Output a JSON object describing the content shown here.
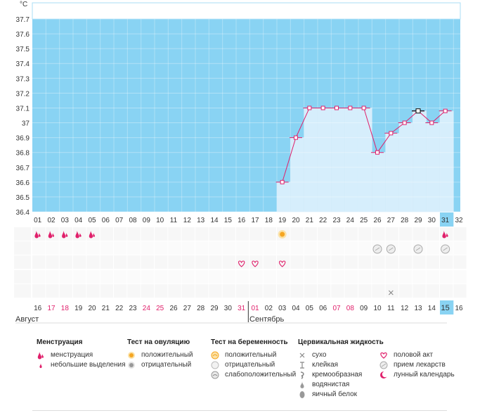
{
  "chart_data": {
    "type": "line",
    "ylabel": "°C",
    "ylim": [
      36.4,
      37.8
    ],
    "y_ticks": [
      "37.7",
      "37.6",
      "37.5",
      "37.4",
      "37.3",
      "37.2",
      "37.1",
      "37",
      "36.9",
      "36.8",
      "36.7",
      "36.6",
      "36.5",
      "36.4"
    ],
    "x_top": [
      "01",
      "02",
      "03",
      "04",
      "05",
      "06",
      "07",
      "08",
      "09",
      "10",
      "11",
      "12",
      "13",
      "14",
      "15",
      "16",
      "17",
      "18",
      "19",
      "20",
      "21",
      "22",
      "23",
      "24",
      "25",
      "26",
      "27",
      "28",
      "29",
      "30",
      "31",
      "32"
    ],
    "x_bottom": [
      "16",
      "17",
      "18",
      "19",
      "20",
      "21",
      "22",
      "23",
      "24",
      "25",
      "26",
      "27",
      "28",
      "29",
      "30",
      "31",
      "01",
      "02",
      "03",
      "04",
      "05",
      "06",
      "07",
      "08",
      "09",
      "10",
      "11",
      "12",
      "13",
      "14",
      "15",
      "16"
    ],
    "bottom_red_indices": [
      1,
      2,
      8,
      9,
      15,
      16,
      22,
      23,
      30
    ],
    "highlight_index": 30,
    "month_left": "Август",
    "month_right": "Сентябрь",
    "series": [
      {
        "x": [
          19,
          20,
          21,
          22,
          23,
          24,
          25,
          26,
          27,
          28,
          29,
          30,
          31
        ],
        "values": [
          36.6,
          36.9,
          37.1,
          37.1,
          37.1,
          37.1,
          37.1,
          36.8,
          36.93,
          37.0,
          37.08,
          37.0,
          37.08
        ]
      }
    ],
    "events": {
      "menstruation": [
        1,
        2,
        3,
        4,
        5,
        31
      ],
      "ovulation_positive": [
        19
      ],
      "medication": [
        26,
        27,
        29,
        31
      ],
      "intercourse": [
        16,
        17,
        19
      ],
      "dry": [
        27
      ]
    },
    "colors": {
      "background": "#89d3f3",
      "bar": "#d6eefc",
      "line": "#e0206b",
      "highlight": "#89d3f3",
      "red_day": "#e0206b"
    }
  },
  "legend": {
    "menstruation": {
      "title": "Менструация",
      "items": [
        "менструация",
        "небольшие выделения"
      ]
    },
    "ovulation": {
      "title": "Тест на овуляцию",
      "items": [
        "положительный",
        "отрицательный"
      ]
    },
    "pregnancy": {
      "title": "Тест на беременность",
      "items": [
        "положительный",
        "отрицательный",
        "слабоположительный"
      ]
    },
    "cervical": {
      "title": "Цервикальная жидкость",
      "items": [
        "сухо",
        "клейкая",
        "кремообразная",
        "водянистая",
        "яичный белок"
      ]
    },
    "other": {
      "items": [
        "половой акт",
        "прием лекарств",
        "лунный календарь"
      ]
    }
  }
}
